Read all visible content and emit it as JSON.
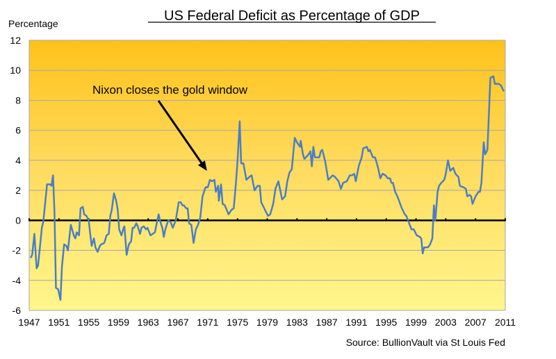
{
  "chart_data": {
    "type": "line",
    "title": "US Federal Deficit as Percentage of GDP",
    "ylabel": "Percentage",
    "xlabel": "",
    "source": "Source: BullionVault via St Louis Fed",
    "ylim": [
      -6,
      12
    ],
    "xlim": [
      1947,
      2011
    ],
    "y_ticks": [
      -6,
      -4,
      -2,
      0,
      2,
      4,
      6,
      8,
      10,
      12
    ],
    "x_ticks": [
      1947,
      1951,
      1955,
      1959,
      1963,
      1967,
      1971,
      1975,
      1979,
      1983,
      1987,
      1991,
      1995,
      1999,
      2003,
      2007,
      2011
    ],
    "grid": "horizontal",
    "colors": {
      "line": "#4A7EC4",
      "background_top": "#FFC21A",
      "background_bottom": "#FFF68C",
      "zero_line": "#000000",
      "grid": "#A6A6A6"
    },
    "annotation": {
      "text": "Nixon closes the gold window",
      "points_to": [
        1970.9,
        3.3
      ]
    },
    "series": [
      {
        "points": [
          [
            1947.2,
            -2.5
          ],
          [
            1947.4,
            -2.3
          ],
          [
            1947.7,
            -0.9
          ],
          [
            1948.0,
            -3.2
          ],
          [
            1948.2,
            -3.0
          ],
          [
            1948.7,
            -0.5
          ],
          [
            1948.9,
            -0.1
          ],
          [
            1949.4,
            2.4
          ],
          [
            1949.8,
            2.4
          ],
          [
            1950.0,
            2.3
          ],
          [
            1950.2,
            3.0
          ],
          [
            1950.4,
            0.5
          ],
          [
            1950.6,
            -4.5
          ],
          [
            1950.9,
            -4.6
          ],
          [
            1951.2,
            -5.3
          ],
          [
            1951.4,
            -3.1
          ],
          [
            1951.7,
            -1.6
          ],
          [
            1952.0,
            -1.7
          ],
          [
            1952.2,
            -2.0
          ],
          [
            1952.6,
            -0.3
          ],
          [
            1953.0,
            -1.0
          ],
          [
            1953.2,
            -1.2
          ],
          [
            1953.4,
            -0.8
          ],
          [
            1953.7,
            -1.0
          ],
          [
            1953.9,
            0.8
          ],
          [
            1954.2,
            0.9
          ],
          [
            1954.4,
            0.4
          ],
          [
            1954.7,
            0.3
          ],
          [
            1955.0,
            0.0
          ],
          [
            1955.2,
            -0.9
          ],
          [
            1955.4,
            -1.7
          ],
          [
            1955.7,
            -1.2
          ],
          [
            1955.9,
            -1.8
          ],
          [
            1956.2,
            -2.1
          ],
          [
            1956.5,
            -1.7
          ],
          [
            1956.7,
            -1.6
          ],
          [
            1957.1,
            -1.5
          ],
          [
            1957.4,
            -1.0
          ],
          [
            1957.7,
            -0.9
          ],
          [
            1957.9,
            0.3
          ],
          [
            1958.1,
            0.7
          ],
          [
            1958.4,
            1.8
          ],
          [
            1958.7,
            1.3
          ],
          [
            1958.9,
            0.7
          ],
          [
            1959.1,
            -0.6
          ],
          [
            1959.4,
            -1.0
          ],
          [
            1959.7,
            -0.5
          ],
          [
            1959.8,
            -0.4
          ],
          [
            1960.1,
            -2.3
          ],
          [
            1960.4,
            -1.6
          ],
          [
            1960.7,
            -1.4
          ],
          [
            1960.9,
            -0.5
          ],
          [
            1961.1,
            -0.5
          ],
          [
            1961.4,
            -0.2
          ],
          [
            1961.6,
            -0.4
          ],
          [
            1961.9,
            -0.9
          ],
          [
            1962.1,
            -0.5
          ],
          [
            1962.4,
            -0.4
          ],
          [
            1962.7,
            -0.6
          ],
          [
            1962.9,
            -0.5
          ],
          [
            1963.3,
            -1.0
          ],
          [
            1963.6,
            -0.9
          ],
          [
            1963.9,
            -0.8
          ],
          [
            1964.1,
            -0.3
          ],
          [
            1964.4,
            0.4
          ],
          [
            1964.7,
            -0.2
          ],
          [
            1964.9,
            -0.5
          ],
          [
            1965.1,
            -1.1
          ],
          [
            1965.3,
            -0.6
          ],
          [
            1965.7,
            0.0
          ],
          [
            1966.0,
            -0.1
          ],
          [
            1966.3,
            -0.5
          ],
          [
            1966.7,
            0.0
          ],
          [
            1967.1,
            1.2
          ],
          [
            1967.4,
            1.2
          ],
          [
            1967.6,
            1.0
          ],
          [
            1967.8,
            1.0
          ],
          [
            1968.1,
            0.8
          ],
          [
            1968.3,
            0.8
          ],
          [
            1968.5,
            -0.2
          ],
          [
            1968.8,
            -0.3
          ],
          [
            1969.1,
            -1.5
          ],
          [
            1969.4,
            -0.6
          ],
          [
            1969.7,
            -0.3
          ],
          [
            1970.0,
            0.2
          ],
          [
            1970.3,
            1.6
          ],
          [
            1970.7,
            2.2
          ],
          [
            1971.0,
            2.2
          ],
          [
            1971.3,
            2.7
          ],
          [
            1971.6,
            2.6
          ],
          [
            1971.9,
            2.7
          ],
          [
            1972.1,
            1.9
          ],
          [
            1972.4,
            2.3
          ],
          [
            1972.5,
            1.3
          ],
          [
            1972.8,
            2.4
          ],
          [
            1973.0,
            1.1
          ],
          [
            1973.3,
            1.0
          ],
          [
            1973.8,
            0.4
          ],
          [
            1974.2,
            0.7
          ],
          [
            1974.5,
            0.8
          ],
          [
            1974.8,
            2.5
          ],
          [
            1975.0,
            3.9
          ],
          [
            1975.3,
            6.6
          ],
          [
            1975.4,
            5.1
          ],
          [
            1975.5,
            3.8
          ],
          [
            1975.8,
            3.8
          ],
          [
            1976.2,
            2.7
          ],
          [
            1976.6,
            2.9
          ],
          [
            1976.9,
            3.0
          ],
          [
            1977.3,
            2.0
          ],
          [
            1977.7,
            2.3
          ],
          [
            1978.0,
            2.3
          ],
          [
            1978.2,
            1.2
          ],
          [
            1978.6,
            0.8
          ],
          [
            1979.0,
            0.4
          ],
          [
            1979.1,
            0.3
          ],
          [
            1979.4,
            0.4
          ],
          [
            1979.8,
            1.1
          ],
          [
            1980.1,
            2.1
          ],
          [
            1980.5,
            2.6
          ],
          [
            1981.0,
            1.4
          ],
          [
            1981.4,
            1.6
          ],
          [
            1981.7,
            2.6
          ],
          [
            1982.0,
            3.2
          ],
          [
            1982.3,
            3.4
          ],
          [
            1982.7,
            5.5
          ],
          [
            1983.0,
            5.2
          ],
          [
            1983.4,
            4.9
          ],
          [
            1983.5,
            5.3
          ],
          [
            1983.8,
            4.4
          ],
          [
            1984.0,
            4.1
          ],
          [
            1984.4,
            4.3
          ],
          [
            1984.7,
            4.5
          ],
          [
            1984.8,
            4.6
          ],
          [
            1985.0,
            3.6
          ],
          [
            1985.2,
            4.9
          ],
          [
            1985.4,
            4.2
          ],
          [
            1985.8,
            4.2
          ],
          [
            1986.0,
            4.2
          ],
          [
            1986.2,
            4.6
          ],
          [
            1986.4,
            4.7
          ],
          [
            1986.8,
            3.9
          ],
          [
            1987.2,
            2.7
          ],
          [
            1987.8,
            3.0
          ],
          [
            1988.1,
            2.9
          ],
          [
            1988.6,
            2.6
          ],
          [
            1988.9,
            2.1
          ],
          [
            1989.2,
            2.5
          ],
          [
            1989.7,
            2.6
          ],
          [
            1990.1,
            3.0
          ],
          [
            1990.4,
            3.0
          ],
          [
            1990.7,
            3.1
          ],
          [
            1990.9,
            2.6
          ],
          [
            1991.3,
            3.6
          ],
          [
            1991.7,
            4.2
          ],
          [
            1991.9,
            4.8
          ],
          [
            1992.4,
            4.9
          ],
          [
            1992.6,
            4.6
          ],
          [
            1992.8,
            4.7
          ],
          [
            1993.2,
            4.2
          ],
          [
            1993.5,
            4.2
          ],
          [
            1993.9,
            3.5
          ],
          [
            1994.2,
            2.8
          ],
          [
            1994.5,
            3.1
          ],
          [
            1994.9,
            3.0
          ],
          [
            1995.2,
            2.8
          ],
          [
            1995.5,
            2.8
          ],
          [
            1995.7,
            2.5
          ],
          [
            1995.9,
            2.5
          ],
          [
            1996.2,
            1.9
          ],
          [
            1996.5,
            1.6
          ],
          [
            1997.1,
            0.8
          ],
          [
            1997.5,
            0.4
          ],
          [
            1997.7,
            0.3
          ],
          [
            1998.0,
            -0.1
          ],
          [
            1998.4,
            -0.6
          ],
          [
            1998.7,
            -0.6
          ],
          [
            1999.1,
            -1.0
          ],
          [
            1999.5,
            -1.1
          ],
          [
            1999.7,
            -1.2
          ],
          [
            1999.9,
            -2.2
          ],
          [
            2000.1,
            -1.8
          ],
          [
            2000.6,
            -1.8
          ],
          [
            2000.9,
            -1.6
          ],
          [
            2001.2,
            -1.2
          ],
          [
            2001.4,
            1.0
          ],
          [
            2001.6,
            0.0
          ],
          [
            2001.9,
            1.9
          ],
          [
            2002.1,
            2.3
          ],
          [
            2002.4,
            2.5
          ],
          [
            2002.8,
            2.7
          ],
          [
            2003.0,
            3.1
          ],
          [
            2003.3,
            4.0
          ],
          [
            2003.6,
            3.3
          ],
          [
            2004.0,
            3.5
          ],
          [
            2004.3,
            3.1
          ],
          [
            2004.7,
            2.9
          ],
          [
            2004.9,
            2.3
          ],
          [
            2005.4,
            2.2
          ],
          [
            2005.7,
            2.1
          ],
          [
            2005.9,
            1.6
          ],
          [
            2006.2,
            1.7
          ],
          [
            2006.4,
            1.6
          ],
          [
            2006.6,
            1.1
          ],
          [
            2007.0,
            1.6
          ],
          [
            2007.4,
            1.9
          ],
          [
            2007.6,
            1.9
          ],
          [
            2007.8,
            2.5
          ],
          [
            2008.1,
            5.2
          ],
          [
            2008.3,
            4.4
          ],
          [
            2008.6,
            4.7
          ],
          [
            2009.0,
            9.5
          ],
          [
            2009.4,
            9.6
          ],
          [
            2009.6,
            9.1
          ],
          [
            2010.1,
            9.1
          ],
          [
            2010.4,
            9.0
          ],
          [
            2010.8,
            8.6
          ]
        ]
      }
    ]
  }
}
